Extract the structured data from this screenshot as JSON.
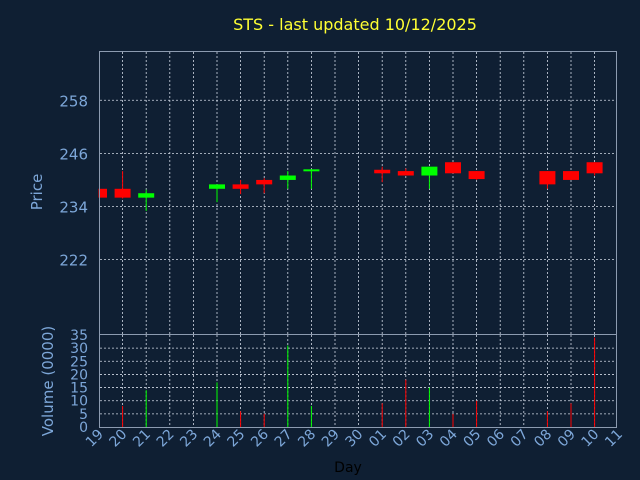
{
  "chart_data": {
    "type": "candlestick",
    "title": "STS - last updated 10/12/2025",
    "price_panel": {
      "ylabel": "Price",
      "yticks": [
        222,
        234,
        246,
        258
      ],
      "ylim": [
        205.2,
        268.9
      ]
    },
    "volume_panel": {
      "ylabel": "Volume (0000)",
      "yticks": [
        0,
        5,
        10,
        15,
        20,
        25,
        30,
        35
      ],
      "ylim": [
        0,
        35
      ]
    },
    "xlabel": "Day",
    "xticks": [
      "19",
      "20",
      "21",
      "22",
      "23",
      "24",
      "25",
      "26",
      "27",
      "28",
      "29",
      "30",
      "01",
      "02",
      "03",
      "04",
      "05",
      "06",
      "07",
      "08",
      "09",
      "10",
      "11"
    ],
    "candles": [
      {
        "day": "19",
        "open": 238.0,
        "high": 238.0,
        "low": 236.0,
        "close": 236.0,
        "volume": 0
      },
      {
        "day": "20",
        "open": 238.0,
        "high": 242.0,
        "low": 235.8,
        "close": 236.0,
        "volume": 8
      },
      {
        "day": "21",
        "open": 236.0,
        "high": 237.8,
        "low": 233.0,
        "close": 237.0,
        "volume": 14
      },
      {
        "day": "24",
        "open": 238.0,
        "high": 239.0,
        "low": 235.0,
        "close": 239.0,
        "volume": 17
      },
      {
        "day": "25",
        "open": 239.0,
        "high": 240.0,
        "low": 236.8,
        "close": 238.0,
        "volume": 6
      },
      {
        "day": "26",
        "open": 240.0,
        "high": 240.4,
        "low": 237.0,
        "close": 239.0,
        "volume": 5
      },
      {
        "day": "27",
        "open": 240.0,
        "high": 242.0,
        "low": 238.0,
        "close": 241.0,
        "volume": 31
      },
      {
        "day": "28",
        "open": 242.0,
        "high": 242.4,
        "low": 238.0,
        "close": 242.4,
        "volume": 8
      },
      {
        "day": "01",
        "open": 242.3,
        "high": 243.0,
        "low": 239.5,
        "close": 241.5,
        "volume": 9
      },
      {
        "day": "02",
        "open": 242.0,
        "high": 242.6,
        "low": 241.0,
        "close": 241.0,
        "volume": 18
      },
      {
        "day": "03",
        "open": 241.0,
        "high": 243.0,
        "low": 238.0,
        "close": 243.0,
        "volume": 15
      },
      {
        "day": "04",
        "open": 244.0,
        "high": 244.0,
        "low": 241.5,
        "close": 241.5,
        "volume": 5
      },
      {
        "day": "05",
        "open": 242.0,
        "high": 242.0,
        "low": 240.0,
        "close": 240.2,
        "volume": 10
      },
      {
        "day": "08",
        "open": 242.0,
        "high": 242.0,
        "low": 238.0,
        "close": 239.0,
        "volume": 6
      },
      {
        "day": "09",
        "open": 242.0,
        "high": 242.0,
        "low": 240.0,
        "close": 240.0,
        "volume": 9
      },
      {
        "day": "10",
        "open": 244.0,
        "high": 244.0,
        "low": 241.0,
        "close": 241.5,
        "volume": 34
      }
    ],
    "colors": {
      "background": "#0f1f33",
      "title": "#ffff33",
      "axis_text": "#7da7d9",
      "frame": "#8c9bb0",
      "grid": "#d0d8e4",
      "up": "#00ff00",
      "down": "#ff0000",
      "day_label": "#000000"
    },
    "grid": true
  }
}
